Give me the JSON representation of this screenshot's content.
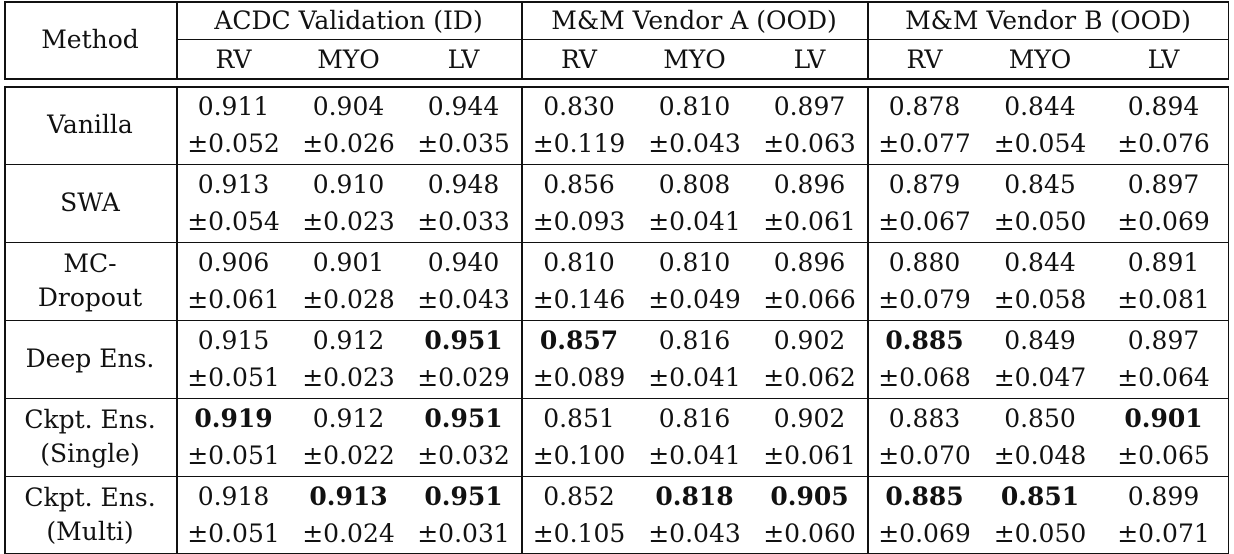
{
  "table": {
    "method_header": "Method",
    "groups": [
      {
        "label": "ACDC Validation (ID)",
        "cols": [
          "RV",
          "MYO",
          "LV"
        ]
      },
      {
        "label": "M&M Vendor A (OOD)",
        "cols": [
          "RV",
          "MYO",
          "LV"
        ]
      },
      {
        "label": "M&M Vendor B (OOD)",
        "cols": [
          "RV",
          "MYO",
          "LV"
        ]
      }
    ],
    "rows": [
      {
        "method": [
          "Vanilla"
        ],
        "means": [
          "0.911",
          "0.904",
          "0.944",
          "0.830",
          "0.810",
          "0.897",
          "0.878",
          "0.844",
          "0.894"
        ],
        "stds": [
          "±0.052",
          "±0.026",
          "±0.035",
          "±0.119",
          "±0.043",
          "±0.063",
          "±0.077",
          "±0.054",
          "±0.076"
        ],
        "bold": []
      },
      {
        "method": [
          "SWA"
        ],
        "means": [
          "0.913",
          "0.910",
          "0.948",
          "0.856",
          "0.808",
          "0.896",
          "0.879",
          "0.845",
          "0.897"
        ],
        "stds": [
          "±0.054",
          "±0.023",
          "±0.033",
          "±0.093",
          "±0.041",
          "±0.061",
          "±0.067",
          "±0.050",
          "±0.069"
        ],
        "bold": []
      },
      {
        "method": [
          "MC-",
          "Dropout"
        ],
        "means": [
          "0.906",
          "0.901",
          "0.940",
          "0.810",
          "0.810",
          "0.896",
          "0.880",
          "0.844",
          "0.891"
        ],
        "stds": [
          "±0.061",
          "±0.028",
          "±0.043",
          "±0.146",
          "±0.049",
          "±0.066",
          "±0.079",
          "±0.058",
          "±0.081"
        ],
        "bold": []
      },
      {
        "method": [
          "Deep Ens."
        ],
        "means": [
          "0.915",
          "0.912",
          "0.951",
          "0.857",
          "0.816",
          "0.902",
          "0.885",
          "0.849",
          "0.897"
        ],
        "stds": [
          "±0.051",
          "±0.023",
          "±0.029",
          "±0.089",
          "±0.041",
          "±0.062",
          "±0.068",
          "±0.047",
          "±0.064"
        ],
        "bold": [
          2,
          3,
          6
        ]
      },
      {
        "method": [
          "Ckpt. Ens.",
          "(Single)"
        ],
        "means": [
          "0.919",
          "0.912",
          "0.951",
          "0.851",
          "0.816",
          "0.902",
          "0.883",
          "0.850",
          "0.901"
        ],
        "stds": [
          "±0.051",
          "±0.022",
          "±0.032",
          "±0.100",
          "±0.041",
          "±0.061",
          "±0.070",
          "±0.048",
          "±0.065"
        ],
        "bold": [
          0,
          2,
          8
        ]
      },
      {
        "method": [
          "Ckpt. Ens.",
          "(Multi)"
        ],
        "means": [
          "0.918",
          "0.913",
          "0.951",
          "0.852",
          "0.818",
          "0.905",
          "0.885",
          "0.851",
          "0.899"
        ],
        "stds": [
          "±0.051",
          "±0.024",
          "±0.031",
          "±0.105",
          "±0.043",
          "±0.060",
          "±0.069",
          "±0.050",
          "±0.071"
        ],
        "bold": [
          1,
          2,
          4,
          5,
          6,
          7
        ]
      }
    ]
  }
}
